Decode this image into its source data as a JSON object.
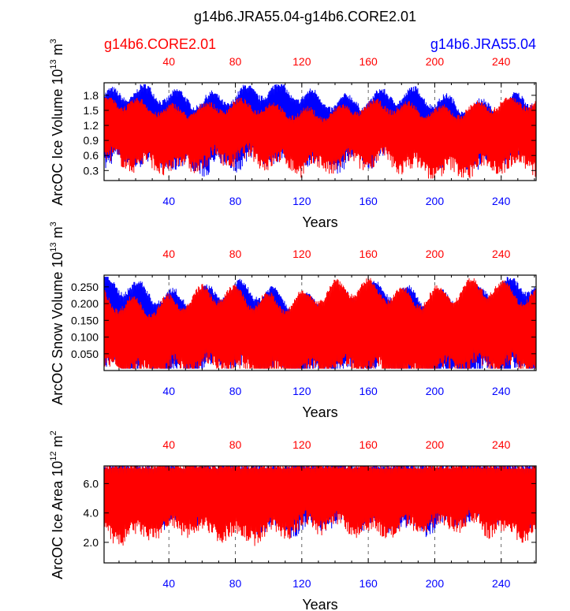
{
  "title": "g14b6.JRA55.04-g14b6.CORE2.01",
  "legend": {
    "left": {
      "label": "g14b6.CORE2.01",
      "color": "#ff0000"
    },
    "right": {
      "label": "g14b6.JRA55.04",
      "color": "#0000ff"
    }
  },
  "colors": {
    "series_a": "#0000ff",
    "series_b": "#ff0000",
    "axis": "#000000",
    "grid": "#444444"
  },
  "chart_data": [
    {
      "type": "line",
      "name": "ice-volume",
      "ylabel": "ArcOC Ice Volume",
      "yunit_mant": "10",
      "yunit_exp": "13",
      "yunit_tail": "m",
      "yunit_tail_exp": "3",
      "xlabel": "Years",
      "xlim": [
        1,
        261
      ],
      "ylim": [
        0.1,
        2.05
      ],
      "xticks": [
        40,
        80,
        120,
        160,
        200,
        240
      ],
      "yticks": [
        0.3,
        0.6,
        0.9,
        1.2,
        1.5,
        1.8
      ],
      "ytick_labels": [
        "0.3",
        "0.6",
        "0.9",
        "1.2",
        "1.5",
        "1.8"
      ],
      "series": [
        {
          "name": "g14b6.JRA55.04",
          "color": "#0000ff",
          "seasonal_max_mean": 1.72,
          "seasonal_min_mean": 0.55,
          "max_range": [
            1.35,
            2.02
          ]
        },
        {
          "name": "g14b6.CORE2.01",
          "color": "#ff0000",
          "seasonal_max_mean": 1.55,
          "seasonal_min_mean": 0.45,
          "max_range": [
            1.25,
            1.75
          ]
        }
      ]
    },
    {
      "type": "line",
      "name": "snow-volume",
      "ylabel": "ArcOC Snow Volume",
      "yunit_mant": "10",
      "yunit_exp": "13",
      "yunit_tail": "m",
      "yunit_tail_exp": "3",
      "xlabel": "Years",
      "xlim": [
        1,
        261
      ],
      "ylim": [
        0.0,
        0.285
      ],
      "xticks": [
        40,
        80,
        120,
        160,
        200,
        240
      ],
      "yticks": [
        0.05,
        0.1,
        0.15,
        0.2,
        0.25
      ],
      "ytick_labels": [
        "0.050",
        "0.100",
        "0.150",
        "0.200",
        "0.250"
      ],
      "series": [
        {
          "name": "g14b6.JRA55.04",
          "color": "#0000ff",
          "seasonal_max_mean": 0.23,
          "seasonal_min_mean": 0.01,
          "max_range": [
            0.17,
            0.28
          ]
        },
        {
          "name": "g14b6.CORE2.01",
          "color": "#ff0000",
          "seasonal_max_mean": 0.22,
          "seasonal_min_mean": 0.01,
          "max_range": [
            0.16,
            0.28
          ]
        }
      ]
    },
    {
      "type": "line",
      "name": "ice-area",
      "ylabel": "ArcOC Ice Area",
      "yunit_mant": "10",
      "yunit_exp": "12",
      "yunit_tail": "m",
      "yunit_tail_exp": "2",
      "xlabel": "Years",
      "xlim": [
        1,
        261
      ],
      "ylim": [
        0.6,
        7.2
      ],
      "xticks": [
        40,
        80,
        120,
        160,
        200,
        240
      ],
      "yticks": [
        2.0,
        4.0,
        6.0
      ],
      "ytick_labels": [
        "2.0",
        "4.0",
        "6.0"
      ],
      "series": [
        {
          "name": "g14b6.JRA55.04",
          "color": "#0000ff",
          "seasonal_max_mean": 7.15,
          "seasonal_min_mean": 3.6,
          "max_range": [
            7.0,
            7.2
          ]
        },
        {
          "name": "g14b6.CORE2.01",
          "color": "#ff0000",
          "seasonal_max_mean": 7.15,
          "seasonal_min_mean": 3.0,
          "max_range": [
            7.0,
            7.2
          ]
        }
      ]
    }
  ]
}
